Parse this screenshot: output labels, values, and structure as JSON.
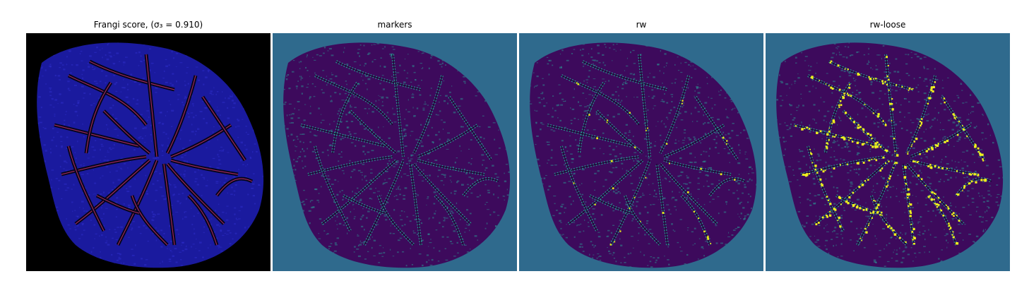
{
  "figure": {
    "panels": [
      {
        "title": "Frangi score, (σ₃ = 0.910)",
        "kind": "frangi-vesselness-map",
        "background": "#000000",
        "tissue_color": "#1a1a9e",
        "vessel_color": "#c0306a"
      },
      {
        "title": "markers",
        "kind": "segmentation-labels",
        "background": "#2f6a8d",
        "tissue_color": "#3d0a5c",
        "vessel_color": "#2aa59a"
      },
      {
        "title": "rw",
        "kind": "segmentation-labels",
        "background": "#2f6a8d",
        "tissue_color": "#3d0a5c",
        "vessel_color": "#2aa59a",
        "highlight_color": "#e6e61a"
      },
      {
        "title": "rw-loose",
        "kind": "segmentation-labels",
        "background": "#2f6a8d",
        "tissue_color": "#3d0a5c",
        "vessel_color": "#2aa59a",
        "highlight_color": "#f0f01e"
      }
    ]
  }
}
